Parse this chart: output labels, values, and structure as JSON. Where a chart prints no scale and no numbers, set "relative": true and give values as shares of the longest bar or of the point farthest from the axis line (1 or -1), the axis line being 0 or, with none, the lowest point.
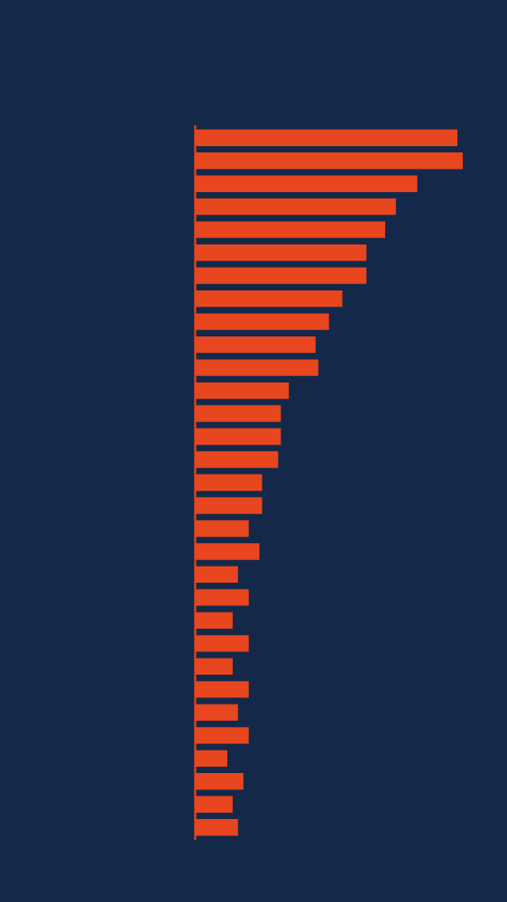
{
  "chart_data": {
    "type": "bar",
    "orientation": "horizontal",
    "relative": true,
    "categories": [
      null,
      null,
      null,
      null,
      null,
      null,
      null,
      null,
      null,
      null,
      null,
      null,
      null,
      null,
      null,
      null,
      null,
      null,
      null,
      null,
      null,
      null,
      null,
      null,
      null,
      null,
      null,
      null,
      null,
      null,
      null
    ],
    "values": [
      0.98,
      1,
      0.83,
      0.75,
      0.71,
      0.64,
      0.64,
      0.55,
      0.5,
      0.45,
      0.46,
      0.35,
      0.32,
      0.32,
      0.31,
      0.25,
      0.25,
      0.2,
      0.24,
      0.16,
      0.2,
      0.14,
      0.2,
      0.14,
      0.2,
      0.16,
      0.2,
      0.12,
      0.18,
      0.14,
      0.16
    ],
    "color": "#e8461e"
  }
}
